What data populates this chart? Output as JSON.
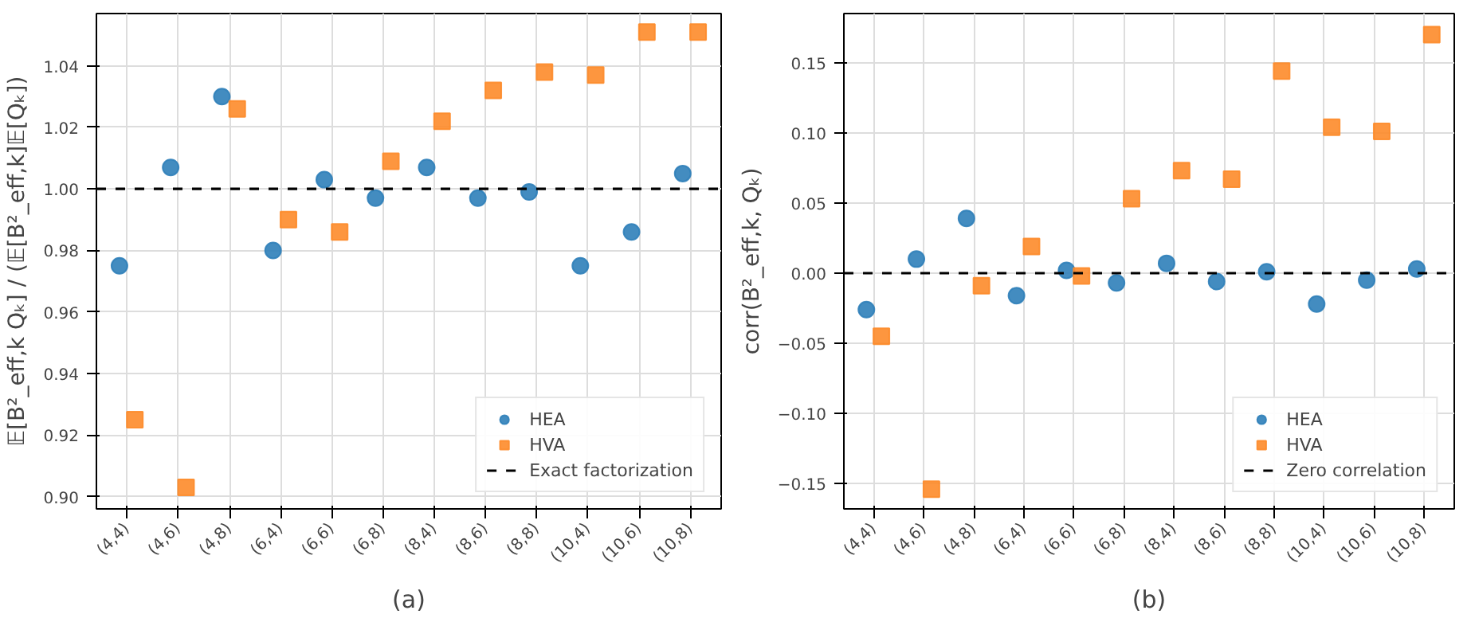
{
  "chart_data": [
    {
      "type": "scatter",
      "xlabel": "(a)",
      "ylabel": "𝔼[B²_eff,k Qₖ] / (𝔼[B²_eff,k]𝔼[Qₖ])",
      "categories": [
        "(4,4)",
        "(4,6)",
        "(4,8)",
        "(6,4)",
        "(6,6)",
        "(6,8)",
        "(8,4)",
        "(8,6)",
        "(8,8)",
        "(10,4)",
        "(10,6)",
        "(10,8)"
      ],
      "series": [
        {
          "name": "HEA",
          "color": "#2f7fb9",
          "marker": "circle",
          "values": [
            0.975,
            1.007,
            1.03,
            0.98,
            1.003,
            0.997,
            1.007,
            0.997,
            0.999,
            0.975,
            0.986,
            1.005
          ]
        },
        {
          "name": "HVA",
          "color": "#fd8b2a",
          "marker": "square",
          "values": [
            0.925,
            0.903,
            1.026,
            0.99,
            0.986,
            1.009,
            1.022,
            1.032,
            1.038,
            1.037,
            1.051,
            1.051
          ]
        }
      ],
      "ylim": [
        0.896,
        1.057
      ],
      "yticks": [
        {
          "value": 0.9,
          "label": "0.90"
        },
        {
          "value": 0.92,
          "label": "0.92"
        },
        {
          "value": 0.94,
          "label": "0.94"
        },
        {
          "value": 0.96,
          "label": "0.96"
        },
        {
          "value": 0.98,
          "label": "0.98"
        },
        {
          "value": 1.0,
          "label": "1.00"
        },
        {
          "value": 1.02,
          "label": "1.02"
        },
        {
          "value": 1.04,
          "label": "1.04"
        }
      ],
      "ref_lines": [
        {
          "axis": "y",
          "value": 1.0,
          "label": "Exact factorization",
          "color": "#000000",
          "line_style": "dashed"
        }
      ],
      "grid": true,
      "legend": "bottom right"
    },
    {
      "type": "scatter",
      "xlabel": "(b)",
      "ylabel": "corr(B²_eff,k, Qₖ)",
      "categories": [
        "(4,4)",
        "(4,6)",
        "(4,8)",
        "(6,4)",
        "(6,6)",
        "(6,8)",
        "(8,4)",
        "(8,6)",
        "(8,8)",
        "(10,4)",
        "(10,6)",
        "(10,8)"
      ],
      "series": [
        {
          "name": "HEA",
          "color": "#2f7fb9",
          "marker": "circle",
          "values": [
            -0.026,
            0.01,
            0.039,
            -0.016,
            0.002,
            -0.007,
            0.007,
            -0.006,
            0.001,
            -0.022,
            -0.005,
            0.003
          ]
        },
        {
          "name": "HVA",
          "color": "#fd8b2a",
          "marker": "square",
          "values": [
            -0.045,
            -0.154,
            -0.009,
            0.019,
            -0.002,
            0.053,
            0.073,
            0.067,
            0.144,
            0.104,
            0.101,
            0.17
          ]
        }
      ],
      "ylim": [
        -0.168,
        0.185
      ],
      "yticks": [
        {
          "value": -0.15,
          "label": "−0.15"
        },
        {
          "value": -0.1,
          "label": "−0.10"
        },
        {
          "value": -0.05,
          "label": "−0.05"
        },
        {
          "value": 0.0,
          "label": "0.00"
        },
        {
          "value": 0.05,
          "label": "0.05"
        },
        {
          "value": 0.1,
          "label": "0.10"
        },
        {
          "value": 0.15,
          "label": "0.15"
        }
      ],
      "ref_lines": [
        {
          "axis": "y",
          "value": 0.0,
          "label": "Zero correlation",
          "color": "#000000",
          "line_style": "dashed"
        }
      ],
      "grid": true,
      "legend": "bottom right"
    }
  ]
}
